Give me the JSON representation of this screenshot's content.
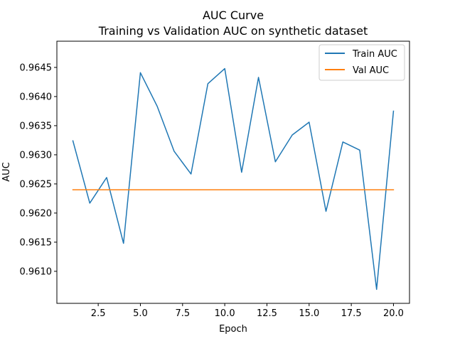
{
  "chart_data": {
    "type": "line",
    "title": "AUC Curve",
    "subtitle": "Training vs Validation AUC on synthetic dataset",
    "xlabel": "Epoch",
    "ylabel": "AUC",
    "xlim": [
      0.05,
      20.95
    ],
    "ylim": [
      0.96045,
      0.96495
    ],
    "x_ticks": [
      2.5,
      5.0,
      7.5,
      10.0,
      12.5,
      15.0,
      17.5,
      20.0
    ],
    "x_tick_labels": [
      "2.5",
      "5.0",
      "7.5",
      "10.0",
      "12.5",
      "15.0",
      "17.5",
      "20.0"
    ],
    "y_ticks": [
      0.961,
      0.9615,
      0.962,
      0.9625,
      0.963,
      0.9635,
      0.964,
      0.9645
    ],
    "y_tick_labels": [
      "0.9610",
      "0.9615",
      "0.9620",
      "0.9625",
      "0.9630",
      "0.9635",
      "0.9640",
      "0.9645"
    ],
    "grid": false,
    "legend_position": "top-right",
    "x": [
      1,
      2,
      3,
      4,
      5,
      6,
      7,
      8,
      9,
      10,
      11,
      12,
      13,
      14,
      15,
      16,
      17,
      18,
      19,
      20
    ],
    "series": [
      {
        "name": "Train AUC",
        "color": "#1f77b4",
        "values": [
          0.96324,
          0.96217,
          0.96261,
          0.96148,
          0.96441,
          0.96383,
          0.96306,
          0.96267,
          0.96422,
          0.96448,
          0.9627,
          0.96433,
          0.96288,
          0.96334,
          0.96356,
          0.96203,
          0.96322,
          0.96308,
          0.96069,
          0.96375
        ]
      },
      {
        "name": "Val AUC",
        "color": "#ff7f0e",
        "values": [
          0.9624,
          0.9624,
          0.9624,
          0.9624,
          0.9624,
          0.9624,
          0.9624,
          0.9624,
          0.9624,
          0.9624,
          0.9624,
          0.9624,
          0.9624,
          0.9624,
          0.9624,
          0.9624,
          0.9624,
          0.9624,
          0.9624,
          0.9624
        ]
      }
    ]
  }
}
